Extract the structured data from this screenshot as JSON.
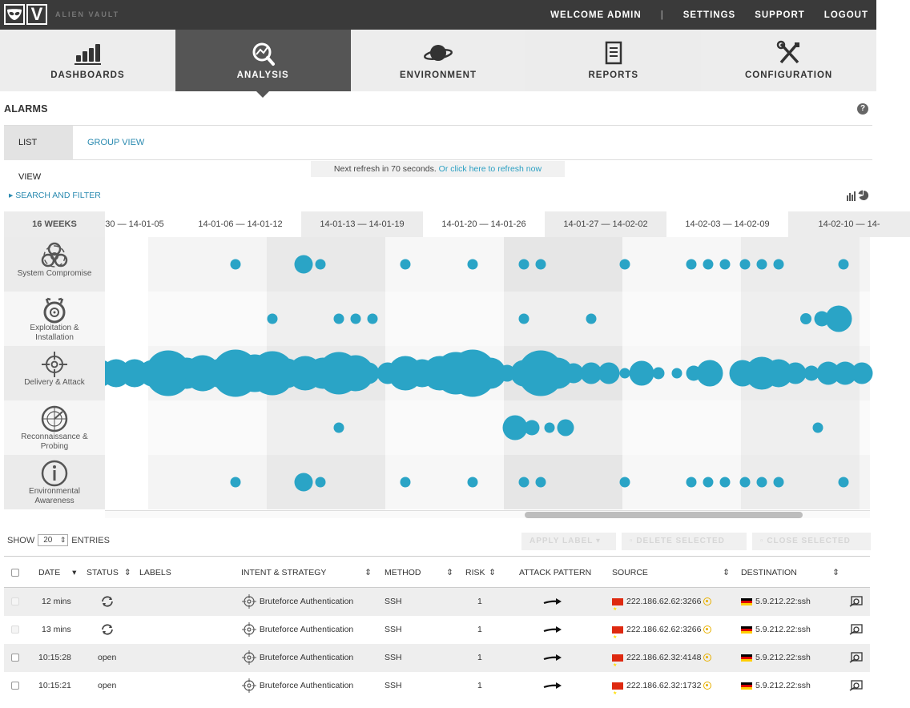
{
  "header": {
    "brand": "ALIEN VAULT",
    "welcome": "WELCOME ADMIN",
    "separator": "|",
    "settings": "SETTINGS",
    "support": "SUPPORT",
    "logout": "LOGOUT"
  },
  "nav": [
    {
      "label": "DASHBOARDS",
      "icon": "bar-chart-icon"
    },
    {
      "label": "ANALYSIS",
      "icon": "magnifier-icon"
    },
    {
      "label": "ENVIRONMENT",
      "icon": "planet-icon"
    },
    {
      "label": "REPORTS",
      "icon": "document-icon"
    },
    {
      "label": "CONFIGURATION",
      "icon": "tools-icon"
    }
  ],
  "page": {
    "title": "ALARMS",
    "help": "?",
    "tab_list": "LIST VIEW",
    "tab_group": "GROUP VIEW",
    "refresh_text": "Next refresh in 70 seconds.",
    "refresh_link": "Or click here to refresh now",
    "search_filter": "SEARCH AND FILTER"
  },
  "timeline": {
    "range_label": "16 WEEKS",
    "weeks": [
      "30 — 14-01-05",
      "14-01-06 — 14-01-12",
      "14-01-13 — 14-01-19",
      "14-01-20 — 14-01-26",
      "14-01-27 — 14-02-02",
      "14-02-03 — 14-02-09",
      "14-02-10 — 14-"
    ],
    "categories": [
      {
        "label1": "System Compromise",
        "label2": "",
        "icon": "biohazard-icon"
      },
      {
        "label1": "Exploitation &",
        "label2": "Installation",
        "icon": "bomb-icon"
      },
      {
        "label1": "Delivery & Attack",
        "label2": "",
        "icon": "crosshair-icon"
      },
      {
        "label1": "Reconnaissance &",
        "label2": "Probing",
        "icon": "radar-icon"
      },
      {
        "label1": "Environmental",
        "label2": "Awareness",
        "icon": "info-icon"
      }
    ],
    "bubbles": [
      [
        [
          294,
          0.3
        ],
        [
          379,
          0.8
        ],
        [
          400,
          0.3
        ],
        [
          506,
          0.3
        ],
        [
          590,
          0.3
        ],
        [
          654,
          0.3
        ],
        [
          675,
          0.3
        ],
        [
          780,
          0.3
        ],
        [
          863,
          0.3
        ],
        [
          884,
          0.3
        ],
        [
          905,
          0.3
        ],
        [
          930,
          0.3
        ],
        [
          951,
          0.3
        ],
        [
          972,
          0.3
        ],
        [
          1053,
          0.3
        ]
      ],
      [
        [
          340,
          0.3
        ],
        [
          423,
          0.3
        ],
        [
          444,
          0.3
        ],
        [
          465,
          0.3
        ],
        [
          654,
          0.3
        ],
        [
          738,
          0.3
        ],
        [
          1006,
          0.35
        ],
        [
          1026,
          0.6
        ],
        [
          1047,
          1.3
        ]
      ],
      [
        [
          126,
          1.3
        ],
        [
          145,
          1.4
        ],
        [
          168,
          1.4
        ],
        [
          190,
          1.3
        ],
        [
          210,
          2.5
        ],
        [
          233,
          1.6
        ],
        [
          253,
          1.9
        ],
        [
          276,
          1.5
        ],
        [
          294,
          2.6
        ],
        [
          318,
          2.0
        ],
        [
          340,
          2.4
        ],
        [
          358,
          1.5
        ],
        [
          381,
          1.8
        ],
        [
          403,
          1.6
        ],
        [
          423,
          2.3
        ],
        [
          444,
          1.9
        ],
        [
          460,
          1.0
        ],
        [
          484,
          1.0
        ],
        [
          506,
          1.8
        ],
        [
          527,
          1.4
        ],
        [
          549,
          1.8
        ],
        [
          569,
          2.3
        ],
        [
          590,
          2.6
        ],
        [
          612,
          1.6
        ],
        [
          633,
          0.7
        ],
        [
          654,
          1.3
        ],
        [
          675,
          2.5
        ],
        [
          696,
          1.6
        ],
        [
          716,
          0.9
        ],
        [
          738,
          1.0
        ],
        [
          760,
          1.0
        ],
        [
          780,
          0.3
        ],
        [
          801,
          1.2
        ],
        [
          822,
          0.4
        ],
        [
          845,
          0.3
        ],
        [
          866,
          0.6
        ],
        [
          886,
          1.3
        ],
        [
          927,
          1.3
        ],
        [
          951,
          1.7
        ],
        [
          972,
          1.4
        ],
        [
          993,
          1.0
        ],
        [
          1013,
          0.6
        ],
        [
          1034,
          1.1
        ],
        [
          1055,
          1.1
        ],
        [
          1076,
          1.0
        ]
      ],
      [
        [
          423,
          0.3
        ],
        [
          643,
          1.2
        ],
        [
          664,
          0.6
        ],
        [
          686,
          0.3
        ],
        [
          706,
          0.7
        ],
        [
          1021,
          0.3
        ]
      ],
      [
        [
          294,
          0.3
        ],
        [
          379,
          0.8
        ],
        [
          400,
          0.3
        ],
        [
          506,
          0.3
        ],
        [
          590,
          0.3
        ],
        [
          654,
          0.3
        ],
        [
          675,
          0.3
        ],
        [
          780,
          0.3
        ],
        [
          863,
          0.3
        ],
        [
          884,
          0.3
        ],
        [
          905,
          0.3
        ],
        [
          930,
          0.3
        ],
        [
          951,
          0.3
        ],
        [
          972,
          0.3
        ],
        [
          1053,
          0.3
        ]
      ]
    ]
  },
  "entries": {
    "show": "SHOW",
    "count": "20",
    "entries_label": "ENTRIES",
    "apply_label": "APPLY LABEL",
    "delete_selected": "DELETE SELECTED",
    "close_selected": "CLOSE SELECTED"
  },
  "table": {
    "headers": {
      "date": "DATE",
      "status": "STATUS",
      "labels": "LABELS",
      "intent": "INTENT & STRATEGY",
      "method": "METHOD",
      "risk": "RISK",
      "attack": "ATTACK PATTERN",
      "source": "SOURCE",
      "destination": "DESTINATION"
    },
    "rows": [
      {
        "date": "12 mins",
        "status": "",
        "intent": "Bruteforce Authentication",
        "method": "SSH",
        "risk": "1",
        "source": "222.186.62.62:3266",
        "destination": "5.9.212.22:ssh"
      },
      {
        "date": "13 mins",
        "status": "",
        "intent": "Bruteforce Authentication",
        "method": "SSH",
        "risk": "1",
        "source": "222.186.62.62:3266",
        "destination": "5.9.212.22:ssh"
      },
      {
        "date": "10:15:28",
        "status": "open",
        "intent": "Bruteforce Authentication",
        "method": "SSH",
        "risk": "1",
        "source": "222.186.62.32:4148",
        "destination": "5.9.212.22:ssh"
      },
      {
        "date": "10:15:21",
        "status": "open",
        "intent": "Bruteforce Authentication",
        "method": "SSH",
        "risk": "1",
        "source": "222.186.62.32:1732",
        "destination": "5.9.212.22:ssh"
      }
    ]
  },
  "colors": {
    "bubble": "#2aa4c6",
    "accent_link": "#2a8ab0",
    "topbar": "#3a3a3a",
    "nav_active": "#555555"
  }
}
